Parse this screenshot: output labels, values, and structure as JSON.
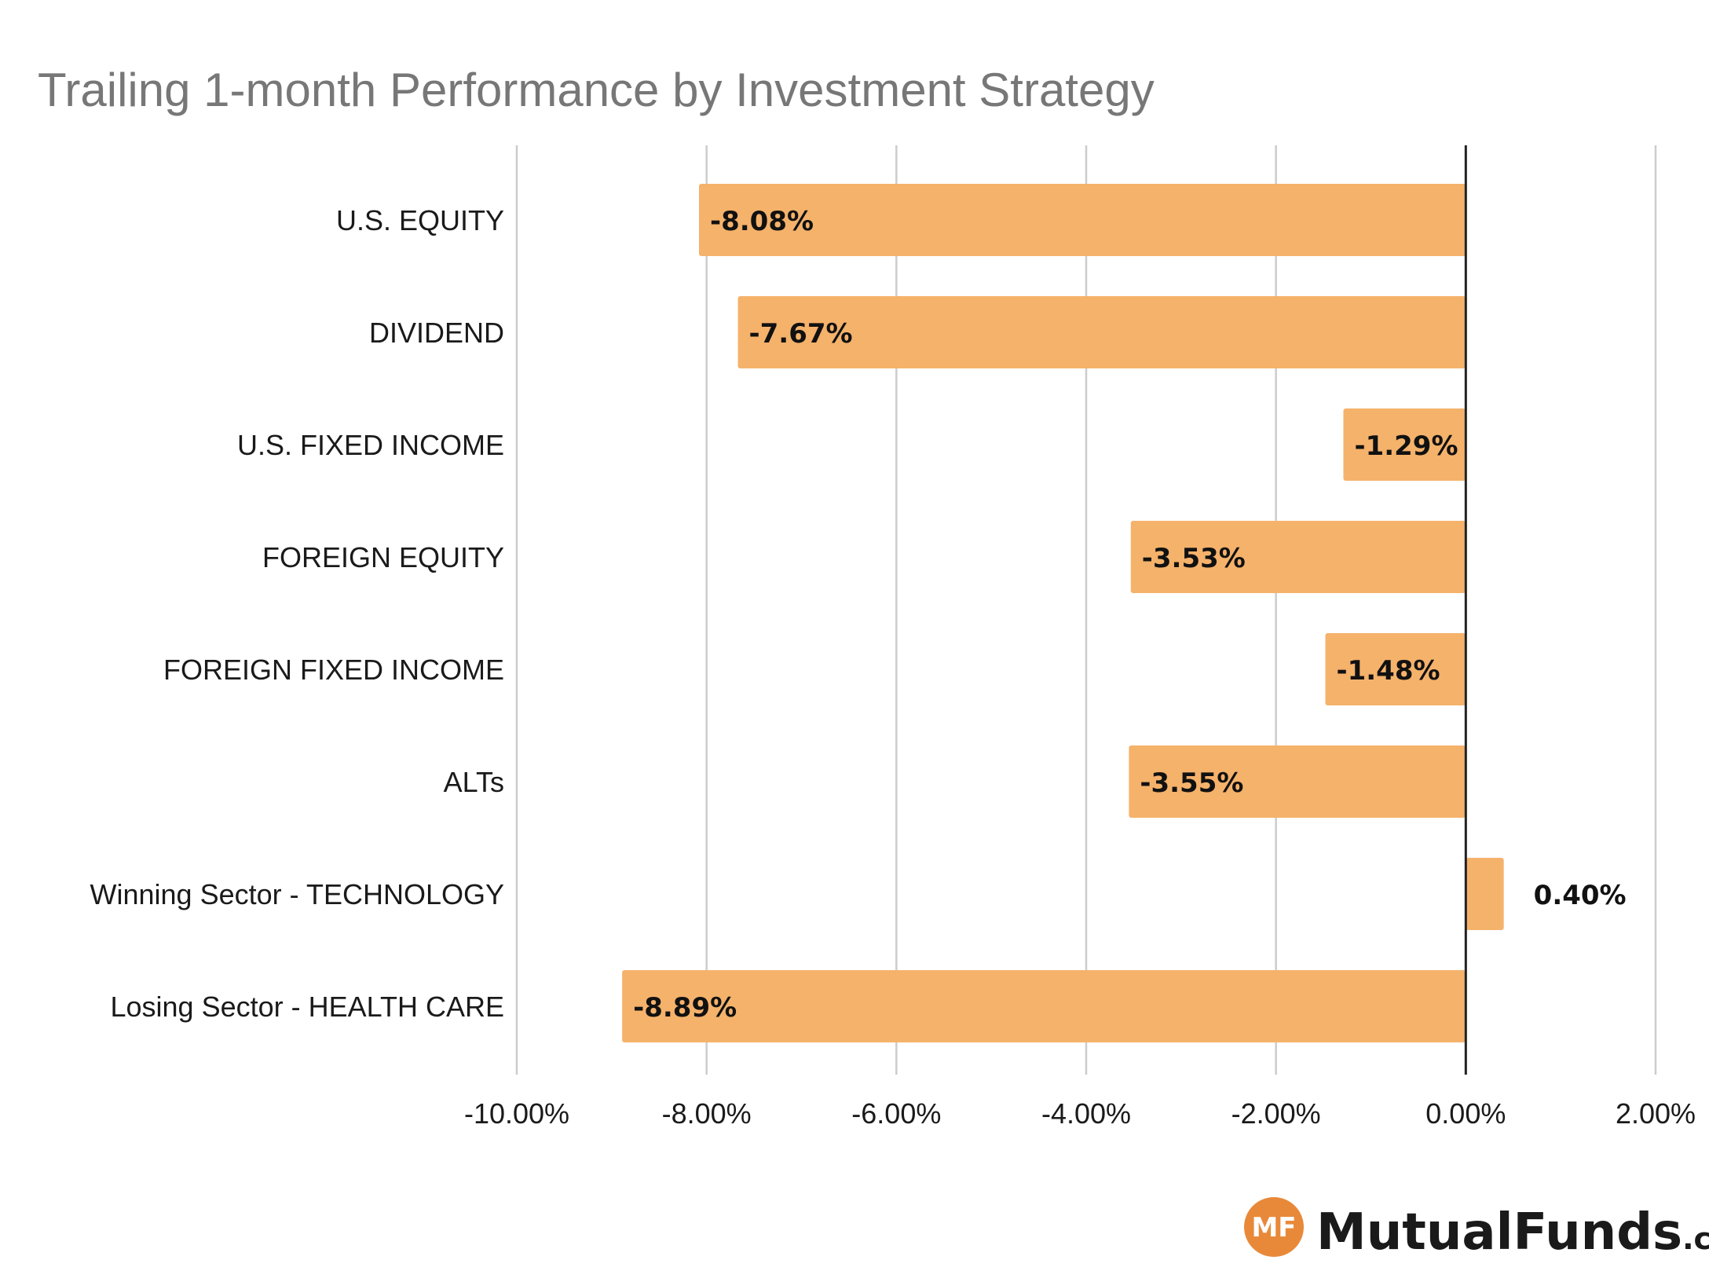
{
  "chart_data": {
    "type": "bar",
    "orientation": "horizontal",
    "title": "Trailing 1-month Performance by Investment Strategy",
    "categories": [
      "U.S. EQUITY",
      "DIVIDEND",
      "U.S. FIXED INCOME",
      "FOREIGN EQUITY",
      "FOREIGN FIXED INCOME",
      "ALTs",
      "Winning Sector - TECHNOLOGY",
      "Losing Sector - HEALTH CARE"
    ],
    "values": [
      -8.08,
      -7.67,
      -1.29,
      -3.53,
      -1.48,
      -3.55,
      0.4,
      -8.89
    ],
    "data_labels": [
      "-8.08%",
      "-7.67%",
      "-1.29%",
      "-3.53%",
      "-1.48%",
      "-3.55%",
      "0.40%",
      "-8.89%"
    ],
    "xlim": [
      -10,
      2
    ],
    "xticks": [
      -10,
      -8,
      -6,
      -4,
      -2,
      0,
      2
    ],
    "xtick_labels": [
      "-10.00%",
      "-8.00%",
      "-6.00%",
      "-4.00%",
      "-2.00%",
      "0.00%",
      "2.00%"
    ],
    "xlabel": "",
    "ylabel": "",
    "grid": "vertical",
    "legend": "none",
    "bar_color": "#F5B26B"
  },
  "brand": {
    "monogram": "MF",
    "name": "MutualFunds",
    "suffix": ".com",
    "color": "#E8893A"
  }
}
